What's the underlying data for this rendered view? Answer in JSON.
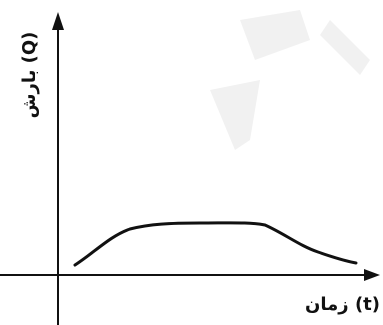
{
  "axes": {
    "y_label": "بارش (Q)",
    "x_label": "زمان (t)"
  }
}
